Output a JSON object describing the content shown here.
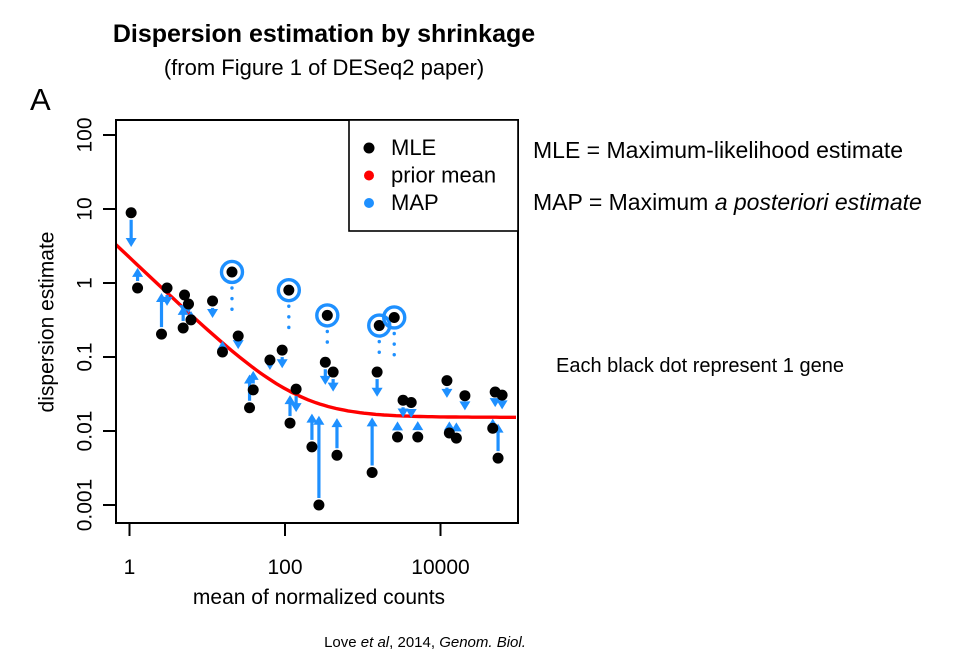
{
  "page": {
    "title": "Dispersion estimation by shrinkage",
    "subtitle": "(from Figure 1 of DESeq2 paper)",
    "panel_label": "A"
  },
  "annotations": {
    "mle_definition": "MLE = Maximum-likelihood estimate",
    "map_definition_prefix": "MAP = Maximum ",
    "map_definition_italic": "a posteriori estimate",
    "dot_note": "Each black dot represent 1 gene"
  },
  "citation": {
    "author": "Love ",
    "etal": "et al",
    "year": ", 2014, ",
    "journal": "Genom. Biol."
  },
  "colors": {
    "mle": "#000000",
    "prior_mean": "#FF0000",
    "map": "#1E90FF",
    "axis": "#000000",
    "background": "#FFFFFF"
  },
  "chart_data": {
    "type": "scatter",
    "title": "Dispersion estimation by shrinkage",
    "xlabel": "mean of normalized counts",
    "ylabel": "dispersion estimate",
    "x_scale": "log",
    "y_scale": "log",
    "xlim": [
      0.67,
      100000
    ],
    "ylim": [
      0.00047,
      160
    ],
    "grid": false,
    "x_ticks": [
      {
        "value": 1,
        "label": "1"
      },
      {
        "value": 100,
        "label": "100"
      },
      {
        "value": 10000,
        "label": "10000"
      }
    ],
    "y_ticks": [
      {
        "value": 100,
        "label": "100"
      },
      {
        "value": 10,
        "label": "10"
      },
      {
        "value": 1,
        "label": "1"
      },
      {
        "value": 0.1,
        "label": "0.1"
      },
      {
        "value": 0.01,
        "label": "0.01"
      },
      {
        "value": 0.001,
        "label": "0.001"
      }
    ],
    "legend": {
      "position": "top-right",
      "entries": [
        {
          "label": "MLE",
          "color": "#000000"
        },
        {
          "label": "prior mean",
          "color": "#FF0000"
        },
        {
          "label": "MAP",
          "color": "#1E90FF"
        }
      ]
    },
    "prior_curve": {
      "formula": "dispersion = a/mean + c",
      "a": 2.2,
      "c": 0.0153
    },
    "genes": [
      {
        "mean": 1.05,
        "mle": 8.9,
        "map": 3.07
      },
      {
        "mean": 1.27,
        "mle": 0.856,
        "map": 1.6
      },
      {
        "mean": 2.58,
        "mle": 0.204,
        "map": 0.733
      },
      {
        "mean": 3.04,
        "mle": 0.856,
        "map": 0.49
      },
      {
        "mean": 5.1,
        "mle": 0.688,
        "map": 0.38
      },
      {
        "mean": 4.9,
        "mle": 0.247,
        "map": 0.49
      },
      {
        "mean": 5.74,
        "mle": 0.52,
        "map": 0.392
      },
      {
        "mean": 6.18,
        "mle": 0.317,
        "map": 0.418
      },
      {
        "mean": 11.7,
        "mle": 0.572,
        "map": 0.336
      },
      {
        "mean": 15.7,
        "mle": 0.117,
        "map": 0.165
      },
      {
        "mean": 20.8,
        "mle": 1.41,
        "map": 1.41,
        "outlier": true,
        "shrink_target": 0.42
      },
      {
        "mean": 25,
        "mle": 0.192,
        "map": 0.128
      },
      {
        "mean": 39,
        "mle": 0.036,
        "map": 0.065
      },
      {
        "mean": 35,
        "mle": 0.0206,
        "map": 0.058
      },
      {
        "mean": 64,
        "mle": 0.0912,
        "map": 0.0668
      },
      {
        "mean": 92,
        "mle": 0.124,
        "map": 0.0705
      },
      {
        "mean": 112,
        "mle": 0.8,
        "map": 0.8,
        "outlier": true,
        "shrink_target": 0.25
      },
      {
        "mean": 139,
        "mle": 0.0368,
        "map": 0.018
      },
      {
        "mean": 116,
        "mle": 0.0128,
        "map": 0.0305
      },
      {
        "mean": 222,
        "mle": 0.0061,
        "map": 0.0172
      },
      {
        "mean": 273,
        "mle": 0.001,
        "map": 0.0161
      },
      {
        "mean": 330,
        "mle": 0.085,
        "map": 0.042
      },
      {
        "mean": 350,
        "mle": 0.365,
        "map": 0.365,
        "outlier": true,
        "shrink_target": 0.155
      },
      {
        "mean": 416,
        "mle": 0.0626,
        "map": 0.034
      },
      {
        "mean": 466,
        "mle": 0.0047,
        "map": 0.0149
      },
      {
        "mean": 1320,
        "mle": 0.00275,
        "map": 0.0153
      },
      {
        "mean": 1530,
        "mle": 0.0626,
        "map": 0.029
      },
      {
        "mean": 1630,
        "mle": 0.266,
        "map": 0.266,
        "outlier": true,
        "shrink_target": 0.1
      },
      {
        "mean": 2540,
        "mle": 0.342,
        "map": 0.342,
        "outlier": true,
        "shrink_target": 0.105
      },
      {
        "mean": 2800,
        "mle": 0.0083,
        "map": 0.0135
      },
      {
        "mean": 3300,
        "mle": 0.026,
        "map": 0.0152
      },
      {
        "mean": 4200,
        "mle": 0.0243,
        "map": 0.015
      },
      {
        "mean": 5100,
        "mle": 0.0083,
        "map": 0.0136
      },
      {
        "mean": 12100,
        "mle": 0.048,
        "map": 0.028
      },
      {
        "mean": 13000,
        "mle": 0.0094,
        "map": 0.0135
      },
      {
        "mean": 16000,
        "mle": 0.008,
        "map": 0.0131
      },
      {
        "mean": 20600,
        "mle": 0.03,
        "map": 0.019
      },
      {
        "mean": 50500,
        "mle": 0.0336,
        "map": 0.021
      },
      {
        "mean": 62000,
        "mle": 0.0305,
        "map": 0.0196
      },
      {
        "mean": 47000,
        "mle": 0.0109,
        "map": 0.0147
      },
      {
        "mean": 55000,
        "mle": 0.0043,
        "map": 0.0126
      }
    ]
  }
}
